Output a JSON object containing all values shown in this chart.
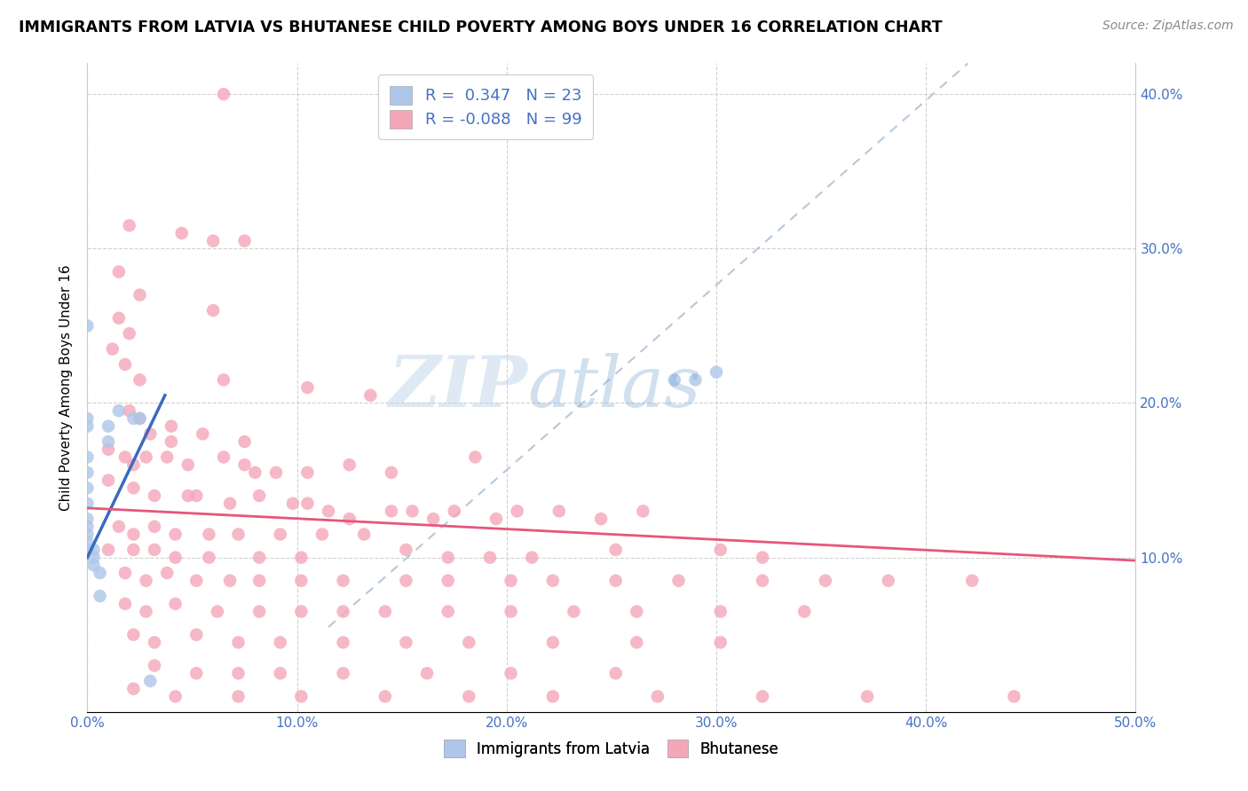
{
  "title": "IMMIGRANTS FROM LATVIA VS BHUTANESE CHILD POVERTY AMONG BOYS UNDER 16 CORRELATION CHART",
  "source": "Source: ZipAtlas.com",
  "ylabel": "Child Poverty Among Boys Under 16",
  "xlim": [
    0.0,
    0.5
  ],
  "ylim": [
    0.0,
    0.42
  ],
  "xticks": [
    0.0,
    0.1,
    0.2,
    0.3,
    0.4,
    0.5
  ],
  "yticks": [
    0.1,
    0.2,
    0.3,
    0.4
  ],
  "xticklabels": [
    "0.0%",
    "10.0%",
    "20.0%",
    "30.0%",
    "40.0%",
    "50.0%"
  ],
  "yticklabels_right": [
    "10.0%",
    "20.0%",
    "30.0%",
    "40.0%"
  ],
  "watermark": "ZIPatlas",
  "color_latvia": "#aec6e8",
  "color_bhutanese": "#f4a7b9",
  "trendline_latvia_color": "#3a6bbf",
  "trendline_bhutanese_color": "#e8557a",
  "trendline_dashed_color": "#b8c8d8",
  "latvia_trendline": [
    [
      0.0,
      0.1
    ],
    [
      0.037,
      0.205
    ]
  ],
  "bhutanese_trendline": [
    [
      0.0,
      0.132
    ],
    [
      0.5,
      0.098
    ]
  ],
  "dashed_line": [
    [
      0.115,
      0.055
    ],
    [
      0.42,
      0.42
    ]
  ],
  "latvia_points": [
    [
      0.0,
      0.25
    ],
    [
      0.0,
      0.19
    ],
    [
      0.0,
      0.185
    ],
    [
      0.0,
      0.165
    ],
    [
      0.0,
      0.155
    ],
    [
      0.0,
      0.145
    ],
    [
      0.0,
      0.135
    ],
    [
      0.0,
      0.125
    ],
    [
      0.0,
      0.12
    ],
    [
      0.0,
      0.115
    ],
    [
      0.0,
      0.11
    ],
    [
      0.0,
      0.105
    ],
    [
      0.003,
      0.105
    ],
    [
      0.003,
      0.1
    ],
    [
      0.003,
      0.095
    ],
    [
      0.006,
      0.09
    ],
    [
      0.006,
      0.075
    ],
    [
      0.01,
      0.185
    ],
    [
      0.01,
      0.175
    ],
    [
      0.015,
      0.195
    ],
    [
      0.022,
      0.19
    ],
    [
      0.025,
      0.19
    ],
    [
      0.03,
      0.02
    ],
    [
      0.28,
      0.215
    ],
    [
      0.29,
      0.215
    ],
    [
      0.3,
      0.22
    ]
  ],
  "bhutanese_points": [
    [
      0.065,
      0.4
    ],
    [
      0.02,
      0.315
    ],
    [
      0.045,
      0.31
    ],
    [
      0.06,
      0.305
    ],
    [
      0.075,
      0.305
    ],
    [
      0.015,
      0.285
    ],
    [
      0.025,
      0.27
    ],
    [
      0.015,
      0.255
    ],
    [
      0.02,
      0.245
    ],
    [
      0.06,
      0.26
    ],
    [
      0.012,
      0.235
    ],
    [
      0.018,
      0.225
    ],
    [
      0.025,
      0.215
    ],
    [
      0.065,
      0.215
    ],
    [
      0.105,
      0.21
    ],
    [
      0.135,
      0.205
    ],
    [
      0.02,
      0.195
    ],
    [
      0.04,
      0.185
    ],
    [
      0.025,
      0.19
    ],
    [
      0.03,
      0.18
    ],
    [
      0.04,
      0.175
    ],
    [
      0.055,
      0.18
    ],
    [
      0.075,
      0.175
    ],
    [
      0.01,
      0.17
    ],
    [
      0.018,
      0.165
    ],
    [
      0.022,
      0.16
    ],
    [
      0.028,
      0.165
    ],
    [
      0.038,
      0.165
    ],
    [
      0.048,
      0.16
    ],
    [
      0.065,
      0.165
    ],
    [
      0.075,
      0.16
    ],
    [
      0.08,
      0.155
    ],
    [
      0.09,
      0.155
    ],
    [
      0.105,
      0.155
    ],
    [
      0.125,
      0.16
    ],
    [
      0.145,
      0.155
    ],
    [
      0.185,
      0.165
    ],
    [
      0.01,
      0.15
    ],
    [
      0.022,
      0.145
    ],
    [
      0.032,
      0.14
    ],
    [
      0.048,
      0.14
    ],
    [
      0.052,
      0.14
    ],
    [
      0.068,
      0.135
    ],
    [
      0.082,
      0.14
    ],
    [
      0.098,
      0.135
    ],
    [
      0.105,
      0.135
    ],
    [
      0.115,
      0.13
    ],
    [
      0.125,
      0.125
    ],
    [
      0.145,
      0.13
    ],
    [
      0.155,
      0.13
    ],
    [
      0.165,
      0.125
    ],
    [
      0.175,
      0.13
    ],
    [
      0.195,
      0.125
    ],
    [
      0.205,
      0.13
    ],
    [
      0.225,
      0.13
    ],
    [
      0.245,
      0.125
    ],
    [
      0.265,
      0.13
    ],
    [
      0.015,
      0.12
    ],
    [
      0.022,
      0.115
    ],
    [
      0.032,
      0.12
    ],
    [
      0.042,
      0.115
    ],
    [
      0.058,
      0.115
    ],
    [
      0.072,
      0.115
    ],
    [
      0.092,
      0.115
    ],
    [
      0.112,
      0.115
    ],
    [
      0.132,
      0.115
    ],
    [
      0.01,
      0.105
    ],
    [
      0.022,
      0.105
    ],
    [
      0.032,
      0.105
    ],
    [
      0.042,
      0.1
    ],
    [
      0.058,
      0.1
    ],
    [
      0.082,
      0.1
    ],
    [
      0.102,
      0.1
    ],
    [
      0.152,
      0.105
    ],
    [
      0.172,
      0.1
    ],
    [
      0.192,
      0.1
    ],
    [
      0.212,
      0.1
    ],
    [
      0.252,
      0.105
    ],
    [
      0.302,
      0.105
    ],
    [
      0.322,
      0.1
    ],
    [
      0.018,
      0.09
    ],
    [
      0.028,
      0.085
    ],
    [
      0.038,
      0.09
    ],
    [
      0.052,
      0.085
    ],
    [
      0.068,
      0.085
    ],
    [
      0.082,
      0.085
    ],
    [
      0.102,
      0.085
    ],
    [
      0.122,
      0.085
    ],
    [
      0.152,
      0.085
    ],
    [
      0.172,
      0.085
    ],
    [
      0.202,
      0.085
    ],
    [
      0.222,
      0.085
    ],
    [
      0.252,
      0.085
    ],
    [
      0.282,
      0.085
    ],
    [
      0.322,
      0.085
    ],
    [
      0.352,
      0.085
    ],
    [
      0.382,
      0.085
    ],
    [
      0.422,
      0.085
    ],
    [
      0.018,
      0.07
    ],
    [
      0.028,
      0.065
    ],
    [
      0.042,
      0.07
    ],
    [
      0.062,
      0.065
    ],
    [
      0.082,
      0.065
    ],
    [
      0.102,
      0.065
    ],
    [
      0.122,
      0.065
    ],
    [
      0.142,
      0.065
    ],
    [
      0.172,
      0.065
    ],
    [
      0.202,
      0.065
    ],
    [
      0.232,
      0.065
    ],
    [
      0.262,
      0.065
    ],
    [
      0.302,
      0.065
    ],
    [
      0.342,
      0.065
    ],
    [
      0.022,
      0.05
    ],
    [
      0.032,
      0.045
    ],
    [
      0.052,
      0.05
    ],
    [
      0.072,
      0.045
    ],
    [
      0.092,
      0.045
    ],
    [
      0.122,
      0.045
    ],
    [
      0.152,
      0.045
    ],
    [
      0.182,
      0.045
    ],
    [
      0.222,
      0.045
    ],
    [
      0.262,
      0.045
    ],
    [
      0.302,
      0.045
    ],
    [
      0.032,
      0.03
    ],
    [
      0.052,
      0.025
    ],
    [
      0.072,
      0.025
    ],
    [
      0.092,
      0.025
    ],
    [
      0.122,
      0.025
    ],
    [
      0.162,
      0.025
    ],
    [
      0.202,
      0.025
    ],
    [
      0.252,
      0.025
    ],
    [
      0.022,
      0.015
    ],
    [
      0.042,
      0.01
    ],
    [
      0.072,
      0.01
    ],
    [
      0.102,
      0.01
    ],
    [
      0.142,
      0.01
    ],
    [
      0.182,
      0.01
    ],
    [
      0.222,
      0.01
    ],
    [
      0.272,
      0.01
    ],
    [
      0.322,
      0.01
    ],
    [
      0.372,
      0.01
    ],
    [
      0.442,
      0.01
    ]
  ]
}
